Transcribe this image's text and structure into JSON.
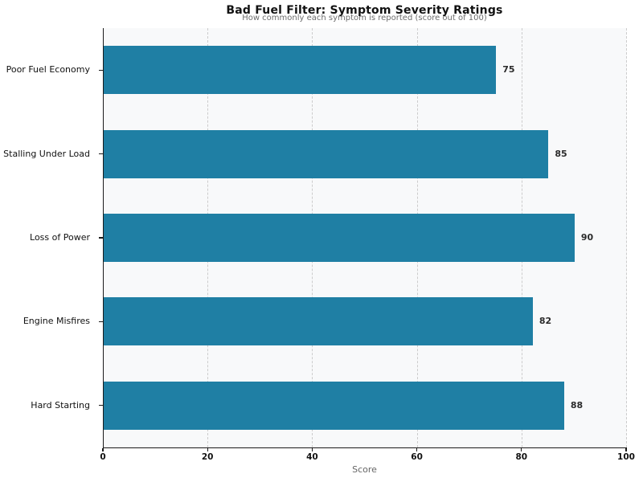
{
  "chart_data": {
    "type": "bar",
    "orientation": "horizontal",
    "title": "Bad Fuel Filter: Symptom Severity Ratings",
    "subtitle": "How commonly each symptom is reported (score out of 100)",
    "xlabel": "Score",
    "ylabel": "",
    "categories": [
      "Poor Fuel Economy",
      "Stalling Under Load",
      "Loss of Power",
      "Engine Misfires",
      "Hard Starting"
    ],
    "values": [
      75,
      85,
      90,
      82,
      88
    ],
    "xlim": [
      0,
      100
    ],
    "xticks": [
      0,
      20,
      40,
      60,
      80,
      100
    ],
    "grid": "vertical-dashed",
    "bar_color": "#1f7fa4",
    "plot_background": "#f8f9fa",
    "value_labels": [
      "75",
      "85",
      "90",
      "82",
      "88"
    ]
  }
}
